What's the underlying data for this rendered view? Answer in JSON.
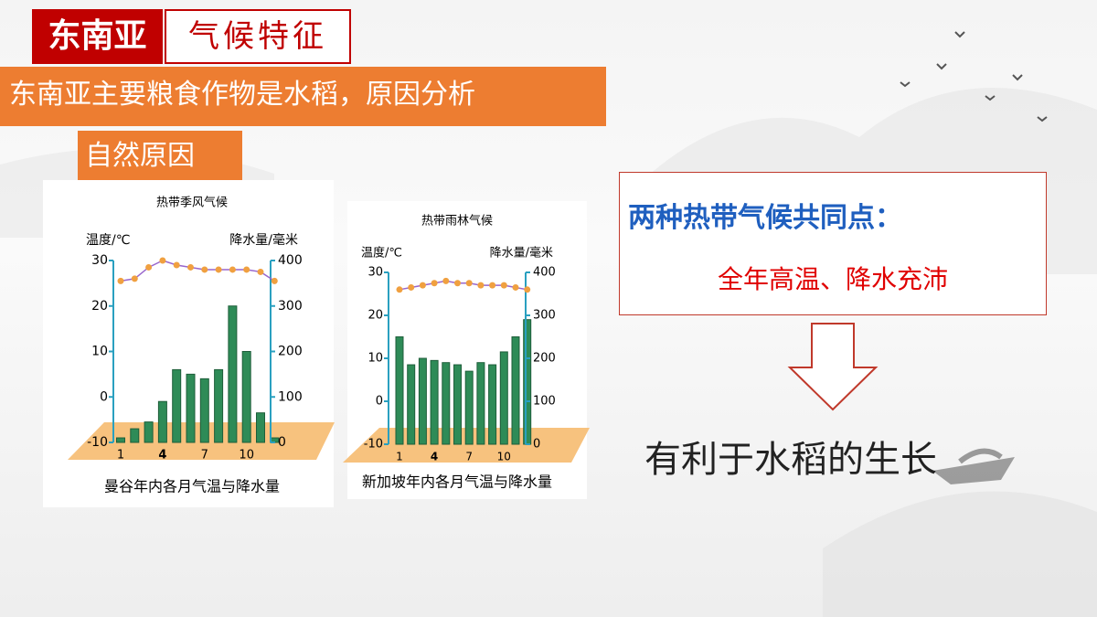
{
  "header": {
    "region": "东南亚",
    "topic": "气候特征",
    "question": "东南亚主要粮食作物是水稻，原因分析",
    "subhead": "自然原因"
  },
  "summary": {
    "title": "两种热带气候共同点：",
    "text": "全年高温、降水充沛",
    "conclusion": "有利于水稻的生长"
  },
  "chart_data": [
    {
      "type": "combo",
      "title": "热带季风气候",
      "ylabel": "温度/℃",
      "y2label": "降水量/毫米",
      "caption": "曼谷年内各月气温与降水量",
      "categories": [
        "1",
        null,
        null,
        "4",
        null,
        null,
        "7",
        null,
        null,
        "10",
        null,
        null
      ],
      "ylim": [
        -10,
        30
      ],
      "yticks": [
        -10,
        0,
        10,
        20,
        30
      ],
      "y2lim": [
        0,
        400
      ],
      "y2ticks": [
        0,
        100,
        200,
        300,
        400
      ],
      "series": [
        {
          "type": "bar",
          "axis": "y2",
          "color": "#2e8b57",
          "values": [
            10,
            30,
            45,
            90,
            160,
            150,
            140,
            160,
            300,
            200,
            65,
            10
          ]
        },
        {
          "type": "line",
          "color": "#9966cc",
          "marker_color": "#f0a040",
          "values": [
            25.5,
            26,
            28.5,
            30,
            29,
            28.5,
            28,
            28,
            28,
            28,
            27.5,
            25.5
          ]
        }
      ]
    },
    {
      "type": "combo",
      "title": "热带雨林气候",
      "ylabel": "温度/℃",
      "y2label": "降水量/毫米",
      "caption": "新加坡年内各月气温与降水量",
      "categories": [
        "1",
        null,
        null,
        "4",
        null,
        null,
        "7",
        null,
        null,
        "10",
        null,
        null
      ],
      "ylim": [
        -10,
        30
      ],
      "yticks": [
        -10,
        0,
        10,
        20,
        30
      ],
      "y2lim": [
        0,
        400
      ],
      "y2ticks": [
        0,
        100,
        200,
        300,
        400
      ],
      "series": [
        {
          "type": "bar",
          "axis": "y2",
          "color": "#2e8b57",
          "values": [
            250,
            185,
            200,
            195,
            190,
            185,
            170,
            190,
            185,
            215,
            250,
            290
          ]
        },
        {
          "type": "line",
          "color": "#9966cc",
          "marker_color": "#f0a040",
          "values": [
            26,
            26.5,
            27,
            27.5,
            28,
            27.5,
            27.5,
            27,
            27,
            27,
            26.5,
            26
          ]
        }
      ]
    }
  ]
}
